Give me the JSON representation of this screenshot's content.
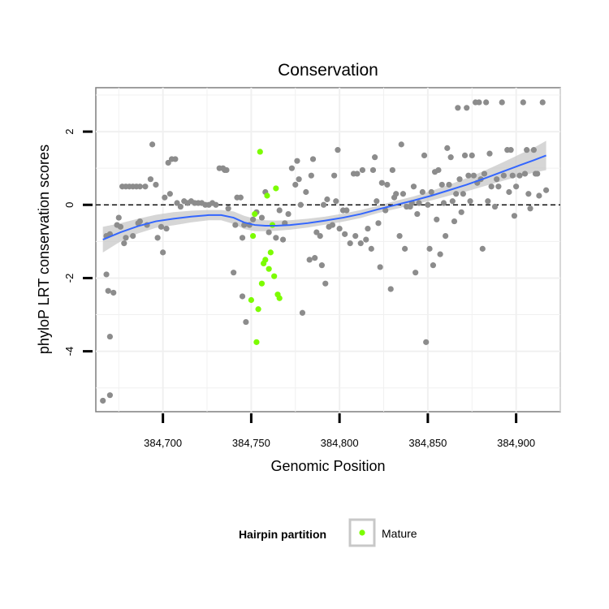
{
  "chart_data": {
    "type": "scatter",
    "title": "Conservation",
    "xlabel": "Genomic Position",
    "ylabel": "phyloP LRT conservation scores",
    "xlim": [
      384662,
      384925
    ],
    "ylim": [
      -5.65,
      3.2
    ],
    "x_ticks": [
      384700,
      384750,
      384800,
      384850,
      384900
    ],
    "x_tick_labels": [
      "384,700",
      "384,750",
      "384,800",
      "384,850",
      "384,900"
    ],
    "y_ticks": [
      -4,
      -2,
      0,
      2
    ],
    "y_tick_labels": [
      "-4",
      "-2",
      "0",
      "2"
    ],
    "grid": true,
    "reference_line": {
      "y": 0,
      "style": "dashed"
    },
    "legend": {
      "title": "Hairpin partition",
      "position": "bottom",
      "entries": [
        {
          "label": "Mature",
          "color": "#7CFC00"
        }
      ]
    },
    "colors": {
      "other": "#8c8c8c",
      "mature": "#7CFC00",
      "smooth": "#3366FF",
      "ribbon": "#c8c8c8"
    },
    "series": [
      {
        "color": "#8c8c8c",
        "points": [
          [
            384666,
            -5.35
          ],
          [
            384670,
            -5.2
          ],
          [
            384668,
            -1.9
          ],
          [
            384669,
            -2.35
          ],
          [
            384670,
            -3.6
          ],
          [
            384672,
            -2.4
          ],
          [
            384668,
            -0.85
          ],
          [
            384670,
            -0.8
          ],
          [
            384675,
            -0.35
          ],
          [
            384674,
            -0.55
          ],
          [
            384676,
            -0.6
          ],
          [
            384678,
            -1.05
          ],
          [
            384679,
            -0.9
          ],
          [
            384677,
            0.5
          ],
          [
            384679,
            0.5
          ],
          [
            384681,
            0.5
          ],
          [
            384683,
            0.5
          ],
          [
            384685,
            0.5
          ],
          [
            384687,
            0.5
          ],
          [
            384690,
            0.5
          ],
          [
            384683,
            -0.85
          ],
          [
            384686,
            -0.5
          ],
          [
            384687,
            -0.45
          ],
          [
            384691,
            -0.55
          ],
          [
            384693,
            0.7
          ],
          [
            384694,
            1.65
          ],
          [
            384696,
            0.55
          ],
          [
            384697,
            -0.9
          ],
          [
            384699,
            -0.6
          ],
          [
            384700,
            -1.3
          ],
          [
            384701,
            0.2
          ],
          [
            384702,
            -0.65
          ],
          [
            384703,
            1.15
          ],
          [
            384704,
            0.3
          ],
          [
            384705,
            1.25
          ],
          [
            384707,
            1.25
          ],
          [
            384708,
            0.05
          ],
          [
            384710,
            -0.05
          ],
          [
            384712,
            0.1
          ],
          [
            384714,
            0.05
          ],
          [
            384716,
            0.1
          ],
          [
            384718,
            0.05
          ],
          [
            384720,
            0.05
          ],
          [
            384722,
            0.05
          ],
          [
            384724,
            0.0
          ],
          [
            384726,
            0.0
          ],
          [
            384728,
            0.05
          ],
          [
            384730,
            0.0
          ],
          [
            384732,
            1.0
          ],
          [
            384734,
            1.0
          ],
          [
            384735,
            0.95
          ],
          [
            384736,
            0.95
          ],
          [
            384737,
            -0.1
          ],
          [
            384740,
            -1.85
          ],
          [
            384741,
            -0.55
          ],
          [
            384742,
            0.2
          ],
          [
            384744,
            0.2
          ],
          [
            384745,
            -0.9
          ],
          [
            384746,
            -0.55
          ],
          [
            384745,
            -2.5
          ],
          [
            384747,
            -3.2
          ],
          [
            384749,
            -0.55
          ],
          [
            384751,
            -0.4
          ],
          [
            384753,
            -0.2
          ],
          [
            384756,
            -0.35
          ],
          [
            384758,
            0.35
          ],
          [
            384760,
            -0.75
          ],
          [
            384764,
            -0.9
          ],
          [
            384766,
            -0.15
          ],
          [
            384768,
            -0.95
          ],
          [
            384769,
            -0.5
          ],
          [
            384771,
            -0.25
          ],
          [
            384773,
            1.0
          ],
          [
            384775,
            0.55
          ],
          [
            384776,
            1.2
          ],
          [
            384777,
            0.7
          ],
          [
            384778,
            0.0
          ],
          [
            384779,
            -2.95
          ],
          [
            384781,
            0.35
          ],
          [
            384783,
            -1.5
          ],
          [
            384784,
            0.8
          ],
          [
            384785,
            1.25
          ],
          [
            384786,
            -1.45
          ],
          [
            384787,
            -0.75
          ],
          [
            384789,
            -0.85
          ],
          [
            384790,
            -1.65
          ],
          [
            384791,
            0.0
          ],
          [
            384792,
            -2.15
          ],
          [
            384793,
            0.15
          ],
          [
            384794,
            -0.6
          ],
          [
            384796,
            -0.55
          ],
          [
            384797,
            0.8
          ],
          [
            384798,
            0.1
          ],
          [
            384799,
            1.5
          ],
          [
            384800,
            -0.65
          ],
          [
            384802,
            -0.15
          ],
          [
            384803,
            -0.8
          ],
          [
            384804,
            -0.15
          ],
          [
            384806,
            -1.05
          ],
          [
            384808,
            0.85
          ],
          [
            384809,
            -0.85
          ],
          [
            384810,
            0.85
          ],
          [
            384812,
            -1.05
          ],
          [
            384813,
            0.95
          ],
          [
            384815,
            -0.95
          ],
          [
            384816,
            -0.65
          ],
          [
            384818,
            -1.2
          ],
          [
            384819,
            0.95
          ],
          [
            384820,
            1.3
          ],
          [
            384821,
            0.1
          ],
          [
            384822,
            -0.5
          ],
          [
            384823,
            -1.7
          ],
          [
            384824,
            0.6
          ],
          [
            384826,
            -0.15
          ],
          [
            384827,
            0.55
          ],
          [
            384829,
            -2.3
          ],
          [
            384830,
            0.95
          ],
          [
            384831,
            0.2
          ],
          [
            384832,
            0.3
          ],
          [
            384834,
            -0.85
          ],
          [
            384835,
            1.65
          ],
          [
            384836,
            0.3
          ],
          [
            384837,
            -1.2
          ],
          [
            384838,
            -0.05
          ],
          [
            384840,
            -0.05
          ],
          [
            384841,
            0.05
          ],
          [
            384842,
            0.5
          ],
          [
            384843,
            -1.85
          ],
          [
            384844,
            -0.25
          ],
          [
            384845,
            0.05
          ],
          [
            384847,
            0.35
          ],
          [
            384848,
            1.35
          ],
          [
            384849,
            -3.75
          ],
          [
            384850,
            0.0
          ],
          [
            384851,
            -1.2
          ],
          [
            384852,
            0.35
          ],
          [
            384853,
            -1.65
          ],
          [
            384854,
            0.9
          ],
          [
            384855,
            -0.4
          ],
          [
            384856,
            0.95
          ],
          [
            384857,
            -1.35
          ],
          [
            384858,
            0.55
          ],
          [
            384859,
            0.05
          ],
          [
            384860,
            -0.85
          ],
          [
            384861,
            1.55
          ],
          [
            384862,
            0.55
          ],
          [
            384863,
            1.3
          ],
          [
            384864,
            0.1
          ],
          [
            384865,
            -0.45
          ],
          [
            384866,
            0.3
          ],
          [
            384867,
            2.65
          ],
          [
            384868,
            0.7
          ],
          [
            384869,
            -0.2
          ],
          [
            384870,
            0.3
          ],
          [
            384871,
            1.35
          ],
          [
            384872,
            2.65
          ],
          [
            384873,
            0.8
          ],
          [
            384874,
            0.1
          ],
          [
            384875,
            1.35
          ],
          [
            384876,
            0.8
          ],
          [
            384877,
            2.8
          ],
          [
            384878,
            0.6
          ],
          [
            384879,
            2.8
          ],
          [
            384880,
            0.7
          ],
          [
            384881,
            -1.2
          ],
          [
            384882,
            0.85
          ],
          [
            384883,
            2.8
          ],
          [
            384884,
            0.1
          ],
          [
            384885,
            1.4
          ],
          [
            384886,
            0.5
          ],
          [
            384888,
            -0.05
          ],
          [
            384889,
            0.7
          ],
          [
            384890,
            0.5
          ],
          [
            384892,
            2.8
          ],
          [
            384893,
            0.8
          ],
          [
            384895,
            1.5
          ],
          [
            384896,
            0.35
          ],
          [
            384897,
            1.5
          ],
          [
            384898,
            0.8
          ],
          [
            384899,
            -0.3
          ],
          [
            384900,
            0.5
          ],
          [
            384902,
            0.8
          ],
          [
            384904,
            2.8
          ],
          [
            384905,
            0.85
          ],
          [
            384906,
            1.5
          ],
          [
            384907,
            0.3
          ],
          [
            384908,
            -0.1
          ],
          [
            384910,
            1.5
          ],
          [
            384911,
            0.85
          ],
          [
            384912,
            0.85
          ],
          [
            384913,
            0.25
          ],
          [
            384915,
            2.8
          ],
          [
            384917,
            0.4
          ]
        ]
      },
      {
        "name": "Mature",
        "color": "#7CFC00",
        "points": [
          [
            384750,
            -2.6
          ],
          [
            384751,
            -0.85
          ],
          [
            384752,
            -0.25
          ],
          [
            384753,
            -3.75
          ],
          [
            384754,
            -2.85
          ],
          [
            384755,
            1.45
          ],
          [
            384756,
            -2.15
          ],
          [
            384757,
            -1.6
          ],
          [
            384758,
            -1.5
          ],
          [
            384759,
            0.25
          ],
          [
            384760,
            -1.75
          ],
          [
            384761,
            -1.3
          ],
          [
            384762,
            -0.55
          ],
          [
            384763,
            -1.95
          ],
          [
            384764,
            0.45
          ],
          [
            384765,
            -2.45
          ],
          [
            384766,
            -2.55
          ]
        ]
      }
    ],
    "smooth": {
      "line": [
        [
          384666,
          -0.95
        ],
        [
          384676,
          -0.75
        ],
        [
          384686,
          -0.58
        ],
        [
          384696,
          -0.45
        ],
        [
          384706,
          -0.38
        ],
        [
          384716,
          -0.32
        ],
        [
          384726,
          -0.28
        ],
        [
          384733,
          -0.28
        ],
        [
          384740,
          -0.35
        ],
        [
          384746,
          -0.48
        ],
        [
          384752,
          -0.55
        ],
        [
          384758,
          -0.57
        ],
        [
          384764,
          -0.57
        ],
        [
          384772,
          -0.55
        ],
        [
          384782,
          -0.5
        ],
        [
          384792,
          -0.43
        ],
        [
          384802,
          -0.35
        ],
        [
          384812,
          -0.25
        ],
        [
          384822,
          -0.12
        ],
        [
          384832,
          0.0
        ],
        [
          384842,
          0.12
        ],
        [
          384852,
          0.25
        ],
        [
          384862,
          0.4
        ],
        [
          384872,
          0.55
        ],
        [
          384882,
          0.72
        ],
        [
          384892,
          0.9
        ],
        [
          384902,
          1.08
        ],
        [
          384910,
          1.22
        ],
        [
          384917,
          1.35
        ]
      ],
      "upper": [
        [
          384666,
          -0.6
        ],
        [
          384676,
          -0.5
        ],
        [
          384686,
          -0.38
        ],
        [
          384696,
          -0.27
        ],
        [
          384706,
          -0.2
        ],
        [
          384716,
          -0.16
        ],
        [
          384726,
          -0.14
        ],
        [
          384733,
          -0.14
        ],
        [
          384740,
          -0.18
        ],
        [
          384746,
          -0.3
        ],
        [
          384752,
          -0.38
        ],
        [
          384758,
          -0.42
        ],
        [
          384764,
          -0.43
        ],
        [
          384772,
          -0.42
        ],
        [
          384782,
          -0.38
        ],
        [
          384792,
          -0.32
        ],
        [
          384802,
          -0.24
        ],
        [
          384812,
          -0.14
        ],
        [
          384822,
          -0.02
        ],
        [
          384832,
          0.11
        ],
        [
          384842,
          0.23
        ],
        [
          384852,
          0.38
        ],
        [
          384862,
          0.55
        ],
        [
          384872,
          0.73
        ],
        [
          384882,
          0.93
        ],
        [
          384892,
          1.15
        ],
        [
          384902,
          1.38
        ],
        [
          384910,
          1.56
        ],
        [
          384917,
          1.75
        ]
      ],
      "lower": [
        [
          384666,
          -1.3
        ],
        [
          384676,
          -1.0
        ],
        [
          384686,
          -0.78
        ],
        [
          384696,
          -0.63
        ],
        [
          384706,
          -0.56
        ],
        [
          384716,
          -0.48
        ],
        [
          384726,
          -0.42
        ],
        [
          384733,
          -0.42
        ],
        [
          384740,
          -0.52
        ],
        [
          384746,
          -0.66
        ],
        [
          384752,
          -0.72
        ],
        [
          384758,
          -0.72
        ],
        [
          384764,
          -0.71
        ],
        [
          384772,
          -0.68
        ],
        [
          384782,
          -0.62
        ],
        [
          384792,
          -0.54
        ],
        [
          384802,
          -0.46
        ],
        [
          384812,
          -0.36
        ],
        [
          384822,
          -0.22
        ],
        [
          384832,
          -0.11
        ],
        [
          384842,
          0.01
        ],
        [
          384852,
          0.12
        ],
        [
          384862,
          0.25
        ],
        [
          384872,
          0.37
        ],
        [
          384882,
          0.51
        ],
        [
          384892,
          0.65
        ],
        [
          384902,
          0.78
        ],
        [
          384910,
          0.88
        ],
        [
          384917,
          0.95
        ]
      ]
    }
  }
}
